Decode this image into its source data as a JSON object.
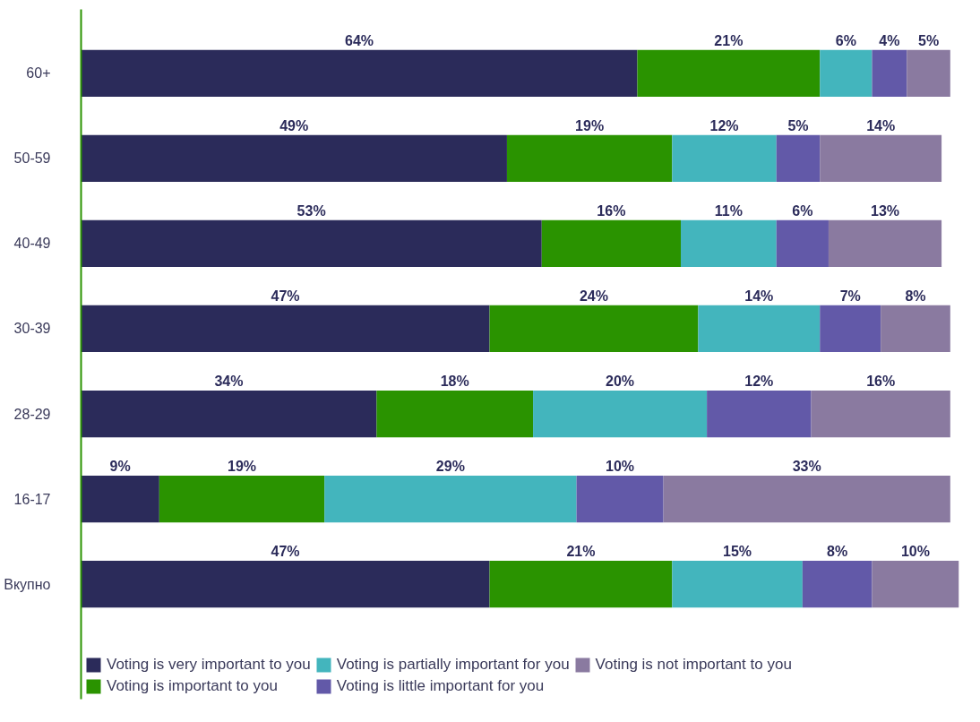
{
  "chart_data": {
    "type": "bar",
    "orientation": "horizontal",
    "stacked": true,
    "grid": false,
    "legend": "bottom",
    "tick_labels": "y",
    "categories": [
      "60+",
      "50-59",
      "40-49",
      "30-39",
      "28-29",
      "16-17",
      "Вкупно"
    ],
    "series": [
      {
        "name": "Voting is very important to you",
        "color": "#2b2b5a",
        "values": [
          64,
          49,
          53,
          47,
          34,
          9,
          47
        ],
        "value_labels": [
          "64%",
          "49%",
          "53%",
          "47%",
          "34%",
          "9%",
          "47%"
        ]
      },
      {
        "name": "Voting is important to you",
        "color": "#2a9300",
        "values": [
          21,
          19,
          16,
          24,
          18,
          19,
          21
        ],
        "value_labels": [
          "21%",
          "19%",
          "16%",
          "24%",
          "18%",
          "19%",
          "21%"
        ]
      },
      {
        "name": "Voting is partially important for you",
        "color": "#43b5bd",
        "values": [
          6,
          12,
          11,
          14,
          20,
          29,
          15
        ],
        "value_labels": [
          "6%",
          "12%",
          "11%",
          "14%",
          "20%",
          "29%",
          "15%"
        ]
      },
      {
        "name": "Voting is little important for you",
        "color": "#6259a8",
        "values": [
          4,
          5,
          6,
          7,
          12,
          10,
          8
        ],
        "value_labels": [
          "4%",
          "5%",
          "6%",
          "7%",
          "12%",
          "10%",
          "8%"
        ]
      },
      {
        "name": "Voting is not important to you",
        "color": "#8a7aa0",
        "values": [
          5,
          14,
          13,
          8,
          16,
          33,
          10
        ],
        "value_labels": [
          "5%",
          "14%",
          "13%",
          "8%",
          "16%",
          "33%",
          "10%"
        ]
      }
    ]
  }
}
